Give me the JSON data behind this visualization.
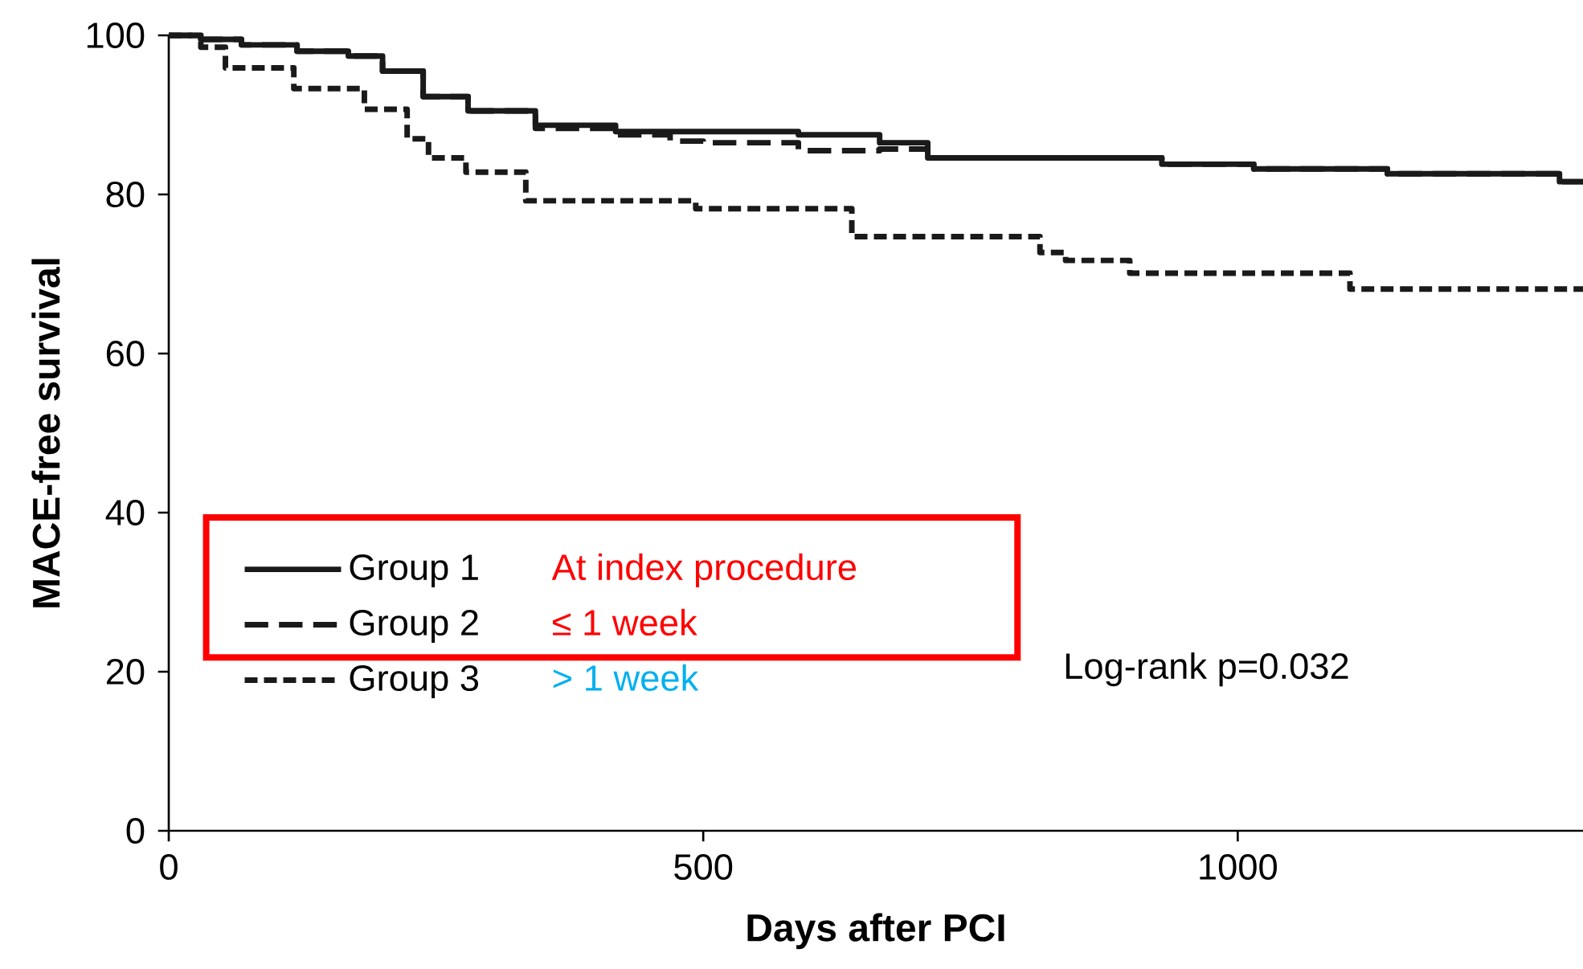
{
  "chart_data": {
    "type": "step",
    "xlabel": "Days after PCI",
    "ylabel": "MACE-free survival",
    "xlim": [
      0,
      1323
    ],
    "ylim": [
      0,
      100
    ],
    "xticks": [
      0,
      500,
      1000
    ],
    "yticks": [
      0,
      20,
      40,
      60,
      80,
      100
    ],
    "grid": false,
    "legend": "bottom left",
    "marker": "none",
    "series": [
      {
        "name": "Group 1",
        "color": "#1a1a1a",
        "line_style": "solid",
        "x": [
          0,
          30,
          68,
          120,
          168,
          200,
          238,
          280,
          343,
          418,
          489,
          589,
          665,
          710,
          929,
          1015,
          1140,
          1301,
          1323
        ],
        "values": [
          100,
          99.5,
          98.8,
          98,
          97.4,
          95.5,
          92.3,
          90.5,
          88.7,
          87.9,
          87.9,
          87.5,
          86.5,
          84.6,
          83.8,
          83.2,
          82.6,
          81.6,
          81.6
        ]
      },
      {
        "name": "Group 2",
        "color": "#1a1a1a",
        "line_style": "dashed",
        "x": [
          0,
          30,
          68,
          120,
          168,
          200,
          238,
          280,
          343,
          418,
          469,
          500,
          589,
          665,
          710,
          929,
          1015,
          1140,
          1301,
          1323
        ],
        "values": [
          100,
          99.5,
          98.8,
          98,
          97.4,
          95.5,
          92.3,
          90.5,
          88.3,
          87.5,
          86.7,
          86.5,
          85.5,
          85.7,
          84.6,
          83.8,
          83.2,
          82.6,
          81.6,
          81.6
        ]
      },
      {
        "name": "Group 3",
        "color": "#1a1a1a",
        "line_style": "dashed",
        "x": [
          0,
          30,
          53,
          117,
          183,
          223,
          243,
          278,
          334,
          493,
          639,
          815,
          839,
          899,
          1105,
          1323
        ],
        "values": [
          100,
          98.5,
          95.9,
          93.3,
          90.7,
          87,
          84.6,
          82.8,
          79.2,
          78.2,
          74.7,
          72.7,
          71.7,
          70.1,
          68.1,
          68.1
        ]
      }
    ],
    "annotations": [
      "At index procedure",
      "≤ 1 week",
      "> 1 week",
      "Log-rank p=0.032"
    ]
  }
}
